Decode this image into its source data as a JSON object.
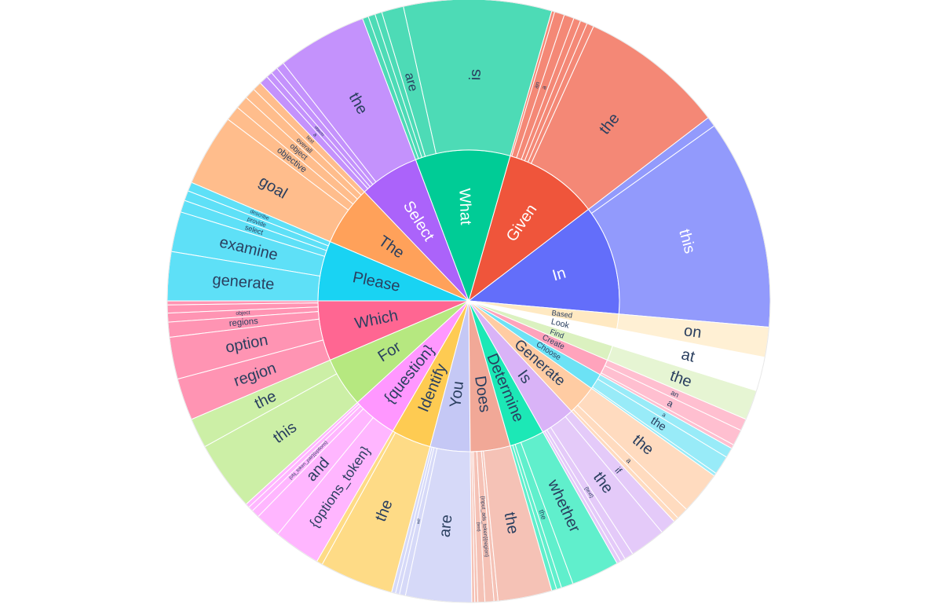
{
  "chart_data": {
    "type": "sunburst",
    "title": "",
    "colors": {
      "In": "#636efa",
      "Given": "#ef553b",
      "What": "#00cc96",
      "Select": "#ab63fa",
      "The": "#ffa15a",
      "Please": "#19d3f3",
      "Which": "#ff6692",
      "For": "#b6e880",
      "{question}": "#ff97ff",
      "Identify": "#fecb52",
      "You": "#c5c8f5",
      "Does": "#f1a897",
      "Determine": "#1ce8b6",
      "Is": "#d9b3f7",
      "Generate": "#ffcca3",
      "Choose": "#6ce2f5",
      "Create": "#ffa3bc",
      "Find": "#dbf1c0",
      "Look": "#ffffff",
      "Based": "#ffe9c2",
      "border": "#ffffff"
    },
    "nodes": [
      {
        "label": "In",
        "value": 11.0,
        "children": [
          {
            "label": "this",
            "value": 10.5
          },
          {
            "label": "",
            "value": 0.5
          }
        ]
      },
      {
        "label": "Given",
        "value": 9.5,
        "children": [
          {
            "label": "the",
            "value": 7.3
          },
          {
            "label": "",
            "value": 0.35
          },
          {
            "label": "",
            "value": 0.35
          },
          {
            "label": "",
            "value": 0.35
          },
          {
            "label": "a",
            "value": 0.5
          },
          {
            "label": "an",
            "value": 0.5
          },
          {
            "label": "",
            "value": 0.15
          }
        ]
      },
      {
        "label": "What",
        "value": 9.5,
        "children": [
          {
            "label": "is",
            "value": 7.4
          },
          {
            "label": "are",
            "value": 1.1
          },
          {
            "label": "",
            "value": 0.35
          },
          {
            "label": "",
            "value": 0.35
          },
          {
            "label": "",
            "value": 0.3
          }
        ]
      },
      {
        "label": "Select",
        "value": 6.0,
        "children": [
          {
            "label": "the",
            "value": 4.5
          },
          {
            "label": "",
            "value": 0.4
          },
          {
            "label": "",
            "value": 0.35
          },
          {
            "label": "objects",
            "value": 0.3
          },
          {
            "label": "a",
            "value": 0.45
          }
        ]
      },
      {
        "label": "The",
        "value": 6.0,
        "children": [
          {
            "label": "text",
            "value": 0.45
          },
          {
            "label": "overall",
            "value": 0.55
          },
          {
            "label": "object",
            "value": 0.65
          },
          {
            "label": "objective",
            "value": 0.75
          },
          {
            "label": "goal",
            "value": 3.6
          }
        ]
      },
      {
        "label": "Please",
        "value": 6.0,
        "children": [
          {
            "label": "describe",
            "value": 0.45
          },
          {
            "label": "provide",
            "value": 0.5
          },
          {
            "label": "select",
            "value": 0.6
          },
          {
            "label": "examine",
            "value": 2.0
          },
          {
            "label": "generate",
            "value": 2.45
          }
        ]
      },
      {
        "label": "Which",
        "value": 6.0,
        "children": [
          {
            "label": "",
            "value": 0.2
          },
          {
            "label": "",
            "value": 0.4
          },
          {
            "label": "object",
            "value": 0.45
          },
          {
            "label": "regions",
            "value": 0.75
          },
          {
            "label": "option",
            "value": 2.1
          },
          {
            "label": "region",
            "value": 2.1
          }
        ]
      },
      {
        "label": "For",
        "value": 5.0,
        "children": [
          {
            "label": "the",
            "value": 1.5
          },
          {
            "label": "this",
            "value": 3.5
          }
        ]
      },
      {
        "label": "{question}",
        "value": 4.5,
        "children": [
          {
            "label": "",
            "value": 0.2
          },
          {
            "label": "",
            "value": 0.25
          },
          {
            "label": "{obj_token_pair}{options}",
            "value": 0.4
          },
          {
            "label": "and",
            "value": 1.3
          },
          {
            "label": "{options_token}",
            "value": 2.35
          }
        ]
      },
      {
        "label": "Identify",
        "value": 4.0,
        "children": [
          {
            "label": "",
            "value": 0.3
          },
          {
            "label": "the",
            "value": 3.7
          }
        ]
      },
      {
        "label": "You",
        "value": 4.0,
        "children": [
          {
            "label": "",
            "value": 0.2
          },
          {
            "label": "",
            "value": 0.2
          },
          {
            "label": "will",
            "value": 0.3
          },
          {
            "label": "are",
            "value": 3.3
          }
        ]
      },
      {
        "label": "Does",
        "value": 4.0,
        "children": [
          {
            "label": "",
            "value": 0.15
          },
          {
            "label": "",
            "value": 0.15
          },
          {
            "label": "{text}",
            "value": 0.35
          },
          {
            "label": "{input_ads_token}{region}",
            "value": 0.45
          },
          {
            "label": "",
            "value": 0.2
          },
          {
            "label": "the",
            "value": 2.7
          }
        ]
      },
      {
        "label": "Determine",
        "value": 3.5,
        "children": [
          {
            "label": "",
            "value": 0.25
          },
          {
            "label": "",
            "value": 0.25
          },
          {
            "label": "the",
            "value": 0.6
          },
          {
            "label": "whether",
            "value": 2.4
          }
        ]
      },
      {
        "label": "Is",
        "value": 3.5,
        "children": [
          {
            "label": "",
            "value": 0.2
          },
          {
            "label": "",
            "value": 0.25
          },
          {
            "label": "{text}",
            "value": 0.45
          },
          {
            "label": "the",
            "value": 1.8
          },
          {
            "label": "if",
            "value": 0.8
          }
        ]
      },
      {
        "label": "Generate",
        "value": 3.0,
        "children": [
          {
            "label": "",
            "value": 0.25
          },
          {
            "label": "a",
            "value": 0.6
          },
          {
            "label": "the",
            "value": 2.15
          }
        ]
      },
      {
        "label": "Choose",
        "value": 1.6,
        "children": [
          {
            "label": "",
            "value": 0.15
          },
          {
            "label": "the",
            "value": 0.95
          },
          {
            "label": "a",
            "value": 0.5
          }
        ]
      },
      {
        "label": "Create",
        "value": 1.6,
        "children": [
          {
            "label": "",
            "value": 0.2
          },
          {
            "label": "a",
            "value": 0.8
          },
          {
            "label": "an",
            "value": 0.6
          }
        ]
      },
      {
        "label": "Find",
        "value": 1.5,
        "children": [
          {
            "label": "the",
            "value": 1.5
          }
        ]
      },
      {
        "label": "Look",
        "value": 1.7,
        "children": [
          {
            "label": "at",
            "value": 1.7
          }
        ]
      },
      {
        "label": "Based",
        "value": 1.5,
        "children": [
          {
            "label": "on",
            "value": 1.5
          }
        ]
      }
    ]
  }
}
